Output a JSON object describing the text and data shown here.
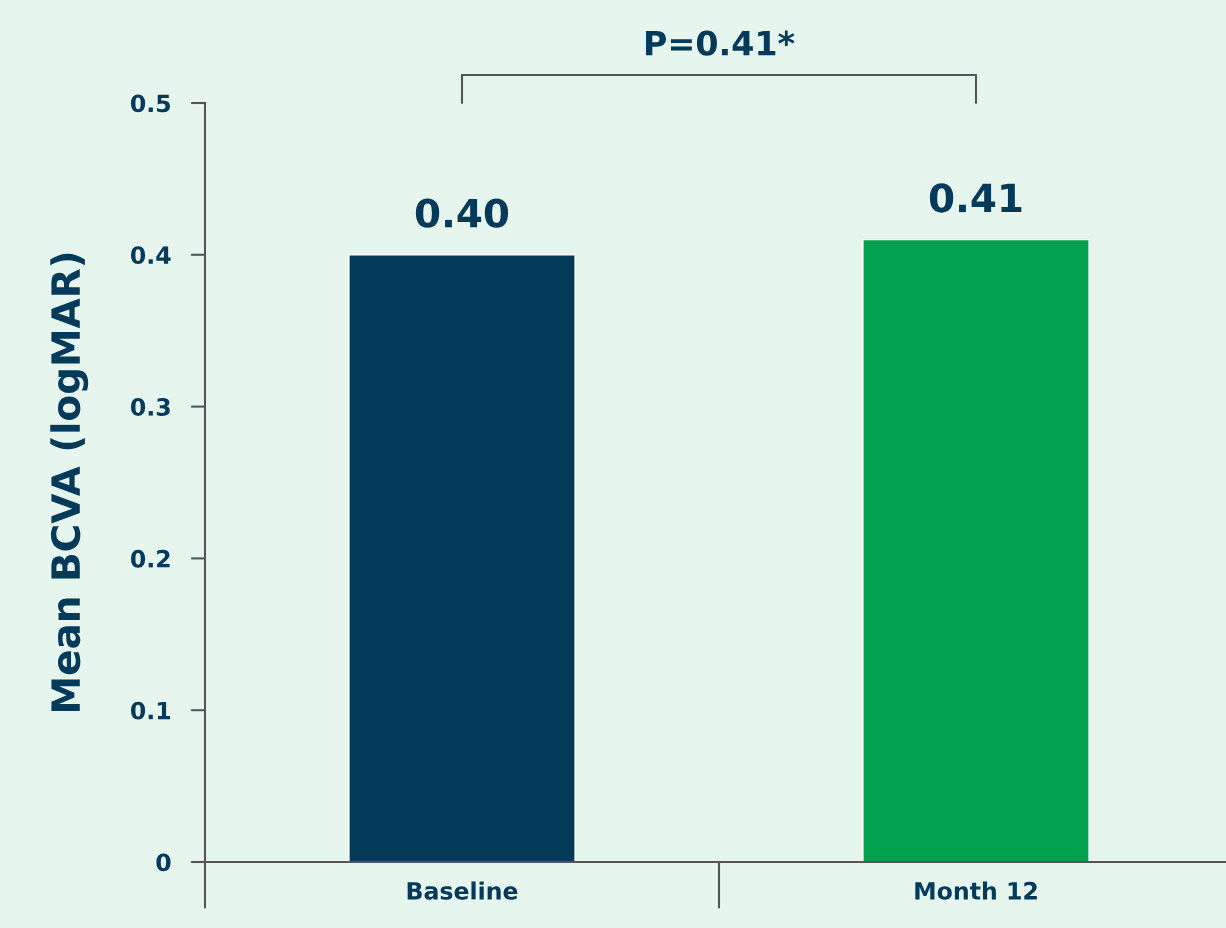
{
  "chart_data": {
    "type": "bar",
    "ylabel": "Mean BCVA (logMAR)",
    "categories": [
      "Baseline",
      "Month 12"
    ],
    "values": [
      0.4,
      0.41
    ],
    "colors": [
      "#033a5a",
      "#00a04e"
    ],
    "value_labels": [
      "0.40",
      "0.41"
    ],
    "ylim": [
      0,
      0.5
    ],
    "yticks": [
      0,
      0.1,
      0.2,
      0.3,
      0.4,
      0.5
    ],
    "annotations": [
      "P=0.41*"
    ],
    "grid": false,
    "legend": false
  }
}
